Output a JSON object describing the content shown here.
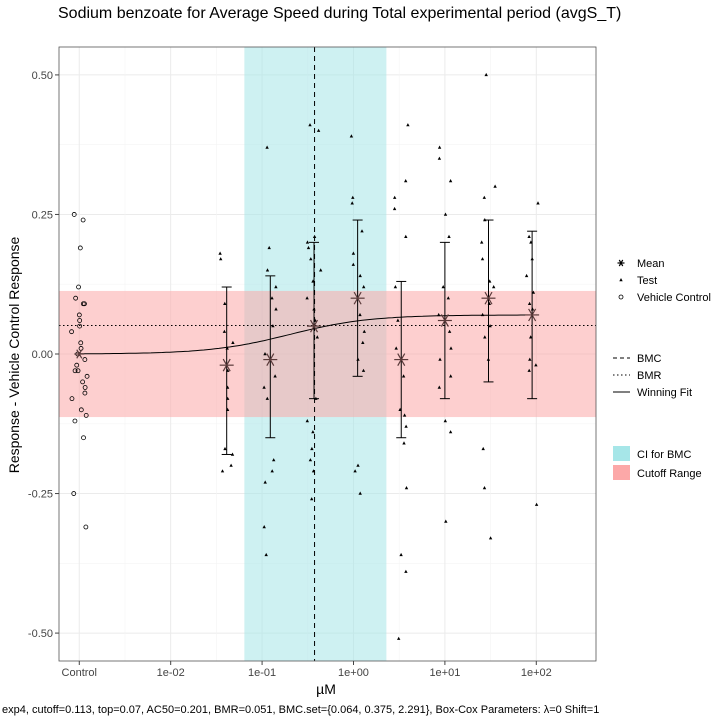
{
  "chart_data": {
    "type": "scatter",
    "title": "Sodium benzoate for Average Speed during Total experimental period (avgS_T)",
    "xlabel": "µM",
    "ylabel": "Response - Vehicle Control Response",
    "caption": "exp4, cutoff=0.113, top=0.07, AC50=0.201, BMR=0.051, BMC.set={0.064, 0.375, 2.291}, Box-Cox Parameters: λ=0 Shift=1",
    "x_scale": "log10",
    "xlim": [
      0.0006,
      450
    ],
    "ylim": [
      -0.55,
      0.55
    ],
    "x_ticks": [
      {
        "x": 0.001,
        "label": "Control"
      },
      {
        "x": 0.01,
        "label": "1e-02"
      },
      {
        "x": 0.1,
        "label": "1e-01"
      },
      {
        "x": 1,
        "label": "1e+00"
      },
      {
        "x": 10,
        "label": "1e+01"
      },
      {
        "x": 100,
        "label": "1e+02"
      }
    ],
    "y_ticks": [
      {
        "y": 0.5,
        "label": "0.50"
      },
      {
        "y": 0.25,
        "label": "0.25"
      },
      {
        "y": 0.0,
        "label": "0.00"
      },
      {
        "y": -0.25,
        "label": "-0.25"
      },
      {
        "y": -0.5,
        "label": "-0.50"
      }
    ],
    "grid": true,
    "cutoff": 0.113,
    "bmr": 0.051,
    "bmc": 0.375,
    "ci_bmc": [
      0.064,
      2.291
    ],
    "fit": {
      "model": "exp4",
      "top": 0.07,
      "ac50": 0.201
    },
    "control": {
      "x": 0.001,
      "mean": 0.0,
      "points": [
        0.25,
        0.24,
        0.19,
        0.12,
        0.1,
        0.09,
        0.09,
        0.07,
        0.06,
        0.05,
        0.04,
        0.02,
        0.01,
        0.0,
        -0.01,
        -0.02,
        -0.03,
        -0.03,
        -0.04,
        -0.05,
        -0.06,
        -0.07,
        -0.08,
        -0.1,
        -0.11,
        -0.12,
        -0.15,
        -0.25,
        -0.31
      ]
    },
    "doses": [
      {
        "x": 0.041,
        "mean": -0.02,
        "lower": -0.18,
        "upper": 0.12,
        "points": [
          0.18,
          0.17,
          0.09,
          0.04,
          0.02,
          0.01,
          -0.03,
          -0.06,
          -0.08,
          -0.1,
          -0.17,
          -0.18,
          -0.2,
          -0.21
        ]
      },
      {
        "x": 0.123,
        "mean": -0.01,
        "lower": -0.15,
        "upper": 0.14,
        "points": [
          0.37,
          0.19,
          0.15,
          0.12,
          0.1,
          0.08,
          0.05,
          0.0,
          -0.04,
          -0.06,
          -0.08,
          -0.19,
          -0.21,
          -0.23,
          -0.31,
          -0.36
        ]
      },
      {
        "x": 0.37,
        "mean": 0.05,
        "lower": -0.08,
        "upper": 0.2,
        "points": [
          0.41,
          0.4,
          0.21,
          0.2,
          0.19,
          0.17,
          0.15,
          0.13,
          0.1,
          0.08,
          0.06,
          0.03,
          -0.08,
          -0.12,
          -0.14,
          -0.17,
          -0.19,
          -0.21,
          -0.26
        ]
      },
      {
        "x": 1.11,
        "mean": 0.1,
        "lower": -0.04,
        "upper": 0.24,
        "points": [
          0.39,
          0.28,
          0.27,
          0.22,
          0.18,
          0.16,
          0.14,
          0.12,
          0.07,
          0.04,
          0.02,
          -0.01,
          -0.03,
          -0.2,
          -0.21,
          -0.25
        ]
      },
      {
        "x": 3.33,
        "mean": -0.01,
        "lower": -0.15,
        "upper": 0.13,
        "points": [
          0.41,
          0.31,
          0.28,
          0.26,
          0.21,
          0.12,
          0.06,
          0.01,
          -0.04,
          -0.1,
          -0.11,
          -0.13,
          -0.16,
          -0.24,
          -0.36,
          -0.39,
          -0.51
        ]
      },
      {
        "x": 10.0,
        "mean": 0.06,
        "lower": -0.08,
        "upper": 0.2,
        "points": [
          0.37,
          0.35,
          0.31,
          0.25,
          0.21,
          0.12,
          0.1,
          0.07,
          0.04,
          0.01,
          -0.01,
          -0.04,
          -0.06,
          -0.12,
          -0.14,
          -0.3
        ]
      },
      {
        "x": 30.0,
        "mean": 0.1,
        "lower": -0.05,
        "upper": 0.24,
        "points": [
          0.5,
          0.3,
          0.28,
          0.24,
          0.2,
          0.17,
          0.13,
          0.12,
          0.09,
          0.07,
          0.05,
          0.03,
          -0.01,
          -0.17,
          -0.24,
          -0.33
        ]
      },
      {
        "x": 90.0,
        "mean": 0.07,
        "lower": -0.08,
        "upper": 0.22,
        "points": [
          0.27,
          0.21,
          0.2,
          0.17,
          0.14,
          0.11,
          0.09,
          0.08,
          0.03,
          -0.01,
          -0.02,
          -0.03,
          -0.27
        ]
      }
    ],
    "legend": {
      "points": [
        {
          "symbol": "asterisk",
          "label": "Mean"
        },
        {
          "symbol": "triangle",
          "label": "Test"
        },
        {
          "symbol": "circle",
          "label": "Vehicle Control"
        }
      ],
      "lines": [
        {
          "style": "dashed",
          "label": "BMC"
        },
        {
          "style": "dotted",
          "label": "BMR"
        },
        {
          "style": "solid",
          "label": "Winning Fit"
        }
      ],
      "fills": [
        {
          "color": "#a6e6e8",
          "label": "CI for BMC"
        },
        {
          "color": "#fca8a8",
          "label": "Cutoff Range"
        }
      ]
    },
    "colors": {
      "ci_band": "#a6e6e8",
      "cutoff_band": "#fca8a8",
      "fit": "#000000",
      "mean": "#5a3a3a",
      "grid": "#ebebeb"
    }
  }
}
